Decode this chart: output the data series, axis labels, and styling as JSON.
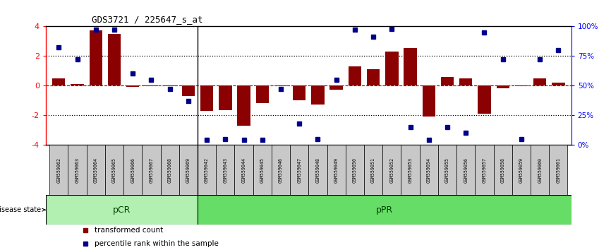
{
  "title": "GDS3721 / 225647_s_at",
  "samples": [
    "GSM559062",
    "GSM559063",
    "GSM559064",
    "GSM559065",
    "GSM559066",
    "GSM559067",
    "GSM559068",
    "GSM559069",
    "GSM559042",
    "GSM559043",
    "GSM559044",
    "GSM559045",
    "GSM559046",
    "GSM559047",
    "GSM559048",
    "GSM559049",
    "GSM559050",
    "GSM559051",
    "GSM559052",
    "GSM559053",
    "GSM559054",
    "GSM559055",
    "GSM559056",
    "GSM559057",
    "GSM559058",
    "GSM559059",
    "GSM559060",
    "GSM559061"
  ],
  "bar_values": [
    0.5,
    0.1,
    3.7,
    3.5,
    -0.1,
    -0.05,
    -0.05,
    -0.7,
    -1.7,
    -1.65,
    -2.7,
    -1.2,
    -0.05,
    -1.0,
    -1.3,
    -0.3,
    1.3,
    1.1,
    2.3,
    2.55,
    -2.1,
    0.6,
    0.5,
    -1.9,
    -0.2,
    -0.05,
    0.5,
    0.2
  ],
  "percentile_values": [
    82,
    72,
    97,
    97,
    60,
    55,
    47,
    37,
    4,
    5,
    4,
    4,
    47,
    18,
    5,
    55,
    97,
    91,
    98,
    15,
    4,
    15,
    10,
    95,
    72,
    5,
    72,
    80
  ],
  "pCR_count": 8,
  "ylim_min": -4,
  "ylim_max": 4,
  "bar_color": "#8B0000",
  "percentile_color": "#00008B",
  "cell_bg_color": "#C8C8C8",
  "cell_border_color": "#000000",
  "pCR_color": "#b2f0b2",
  "pPR_color": "#66dd66",
  "strip_border_color": "#000000",
  "pCR_label": "pCR",
  "pPR_label": "pPR",
  "disease_state_label": "disease state",
  "legend_bar_label": "transformed count",
  "legend_pct_label": "percentile rank within the sample"
}
